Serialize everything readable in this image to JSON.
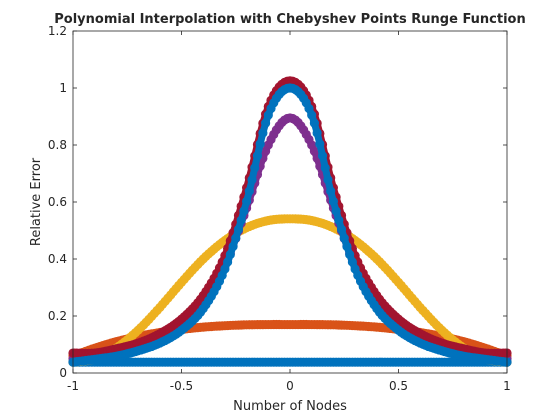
{
  "chart_data": {
    "type": "line",
    "title": "Polynomial Interpolation with Chebyshev Points Runge Function",
    "xlabel": "Number of Nodes",
    "ylabel": "Relative Error",
    "xlim": [
      -1,
      1
    ],
    "ylim": [
      0,
      1.2
    ],
    "xticks": [
      -1,
      -0.5,
      0,
      0.5,
      1
    ],
    "xtick_labels": [
      "-1",
      "-0.5",
      "0",
      "0.5",
      "1"
    ],
    "yticks": [
      0,
      0.2,
      0.4,
      0.6,
      0.8,
      1,
      1.2
    ],
    "ytick_labels": [
      "0",
      "0.2",
      "0.4",
      "0.6",
      "0.8",
      "1",
      "1.2"
    ],
    "grid": false,
    "legend": "none",
    "marker": "circle",
    "x": [
      -1,
      -0.9,
      -0.8,
      -0.7,
      -0.6,
      -0.5,
      -0.4,
      -0.3,
      -0.2,
      -0.1,
      0,
      0.1,
      0.2,
      0.3,
      0.4,
      0.5,
      0.6,
      0.7,
      0.8,
      0.9,
      1
    ],
    "series": [
      {
        "color": "#0072BD",
        "values": [
          0.038,
          0.038,
          0.038,
          0.038,
          0.038,
          0.038,
          0.038,
          0.038,
          0.038,
          0.038,
          0.038,
          0.038,
          0.038,
          0.038,
          0.038,
          0.038,
          0.038,
          0.038,
          0.038,
          0.038,
          0.038
        ]
      },
      {
        "color": "#D95319",
        "values": [
          0.06,
          0.087,
          0.11,
          0.128,
          0.142,
          0.153,
          0.161,
          0.166,
          0.169,
          0.17,
          0.17,
          0.17,
          0.169,
          0.166,
          0.161,
          0.153,
          0.142,
          0.128,
          0.11,
          0.087,
          0.06
        ]
      },
      {
        "color": "#EDB120",
        "values": [
          0.038,
          0.05,
          0.088,
          0.15,
          0.23,
          0.318,
          0.4,
          0.465,
          0.51,
          0.535,
          0.541,
          0.535,
          0.51,
          0.465,
          0.4,
          0.318,
          0.23,
          0.15,
          0.088,
          0.05,
          0.038
        ]
      },
      {
        "color": "#7E2F8E",
        "values": [
          0.05,
          0.062,
          0.075,
          0.095,
          0.125,
          0.172,
          0.247,
          0.376,
          0.579,
          0.8,
          0.895,
          0.8,
          0.579,
          0.376,
          0.247,
          0.172,
          0.125,
          0.095,
          0.075,
          0.062,
          0.05
        ]
      },
      {
        "color": "#A2142F",
        "values": [
          0.07,
          0.07,
          0.085,
          0.105,
          0.138,
          0.189,
          0.272,
          0.412,
          0.65,
          0.935,
          1.025,
          0.935,
          0.65,
          0.412,
          0.272,
          0.189,
          0.138,
          0.105,
          0.085,
          0.07,
          0.07
        ]
      },
      {
        "color": "#0072BD",
        "values": [
          0.038,
          0.048,
          0.059,
          0.078,
          0.105,
          0.15,
          0.226,
          0.365,
          0.602,
          0.905,
          1.0,
          0.905,
          0.602,
          0.365,
          0.226,
          0.15,
          0.105,
          0.078,
          0.059,
          0.048,
          0.038
        ]
      }
    ]
  }
}
